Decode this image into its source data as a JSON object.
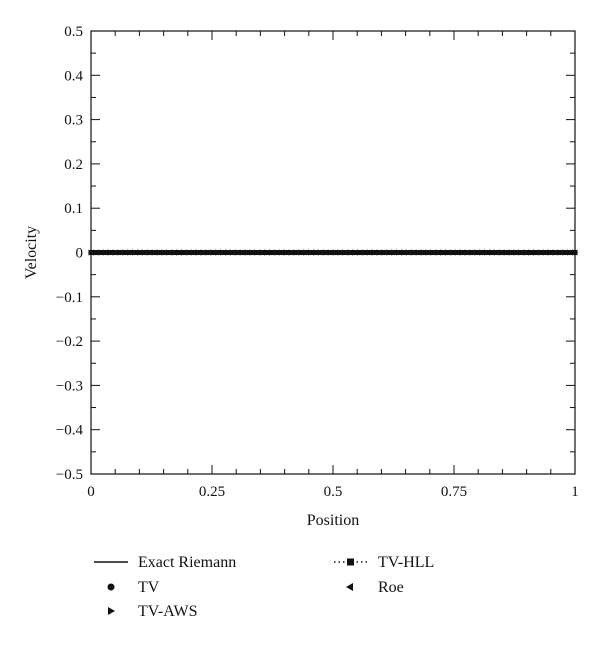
{
  "chart_data": {
    "type": "line",
    "xlabel": "Position",
    "ylabel": "Velocity",
    "xlim": [
      0,
      1
    ],
    "ylim": [
      -0.5,
      0.5
    ],
    "x_ticks": [
      0,
      0.25,
      0.5,
      0.75,
      1
    ],
    "x_tick_labels": [
      "0",
      "0.25",
      "0.5",
      "0.75",
      "1"
    ],
    "y_ticks": [
      -0.5,
      -0.4,
      -0.3,
      -0.2,
      -0.1,
      0,
      0.1,
      0.2,
      0.3,
      0.4,
      0.5
    ],
    "y_tick_labels": [
      "−0.5",
      "−0.4",
      "−0.3",
      "−0.2",
      "−0.1",
      "0",
      "0.1",
      "0.2",
      "0.3",
      "0.4",
      "0.5"
    ],
    "grid": false,
    "legend_position": "bottom",
    "series": [
      {
        "name": "Exact Riemann",
        "style": "solid-line",
        "x": [
          0,
          1
        ],
        "values": [
          0,
          0
        ]
      },
      {
        "name": "TV",
        "style": "circle-marker",
        "x_start": 0,
        "x_end": 1,
        "num_points": 100,
        "value": 0
      },
      {
        "name": "TV-AWS",
        "style": "right-triangle-marker",
        "x_start": 0,
        "x_end": 1,
        "num_points": 100,
        "value": 0
      },
      {
        "name": "TV-HLL",
        "style": "dotted-square-marker",
        "x_start": 0,
        "x_end": 1,
        "num_points": 100,
        "value": 0
      },
      {
        "name": "Roe",
        "style": "left-triangle-marker",
        "x_start": 0,
        "x_end": 1,
        "num_points": 100,
        "value": 0
      }
    ],
    "legend": [
      {
        "label": "Exact Riemann",
        "symbol": "line"
      },
      {
        "label": "TV-HLL",
        "symbol": "dotted-square"
      },
      {
        "label": "TV",
        "symbol": "circle"
      },
      {
        "label": "Roe",
        "symbol": "left-triangle"
      },
      {
        "label": "TV-AWS",
        "symbol": "right-triangle"
      }
    ],
    "colors": {
      "axis": "#111111",
      "series": "#111111"
    }
  }
}
